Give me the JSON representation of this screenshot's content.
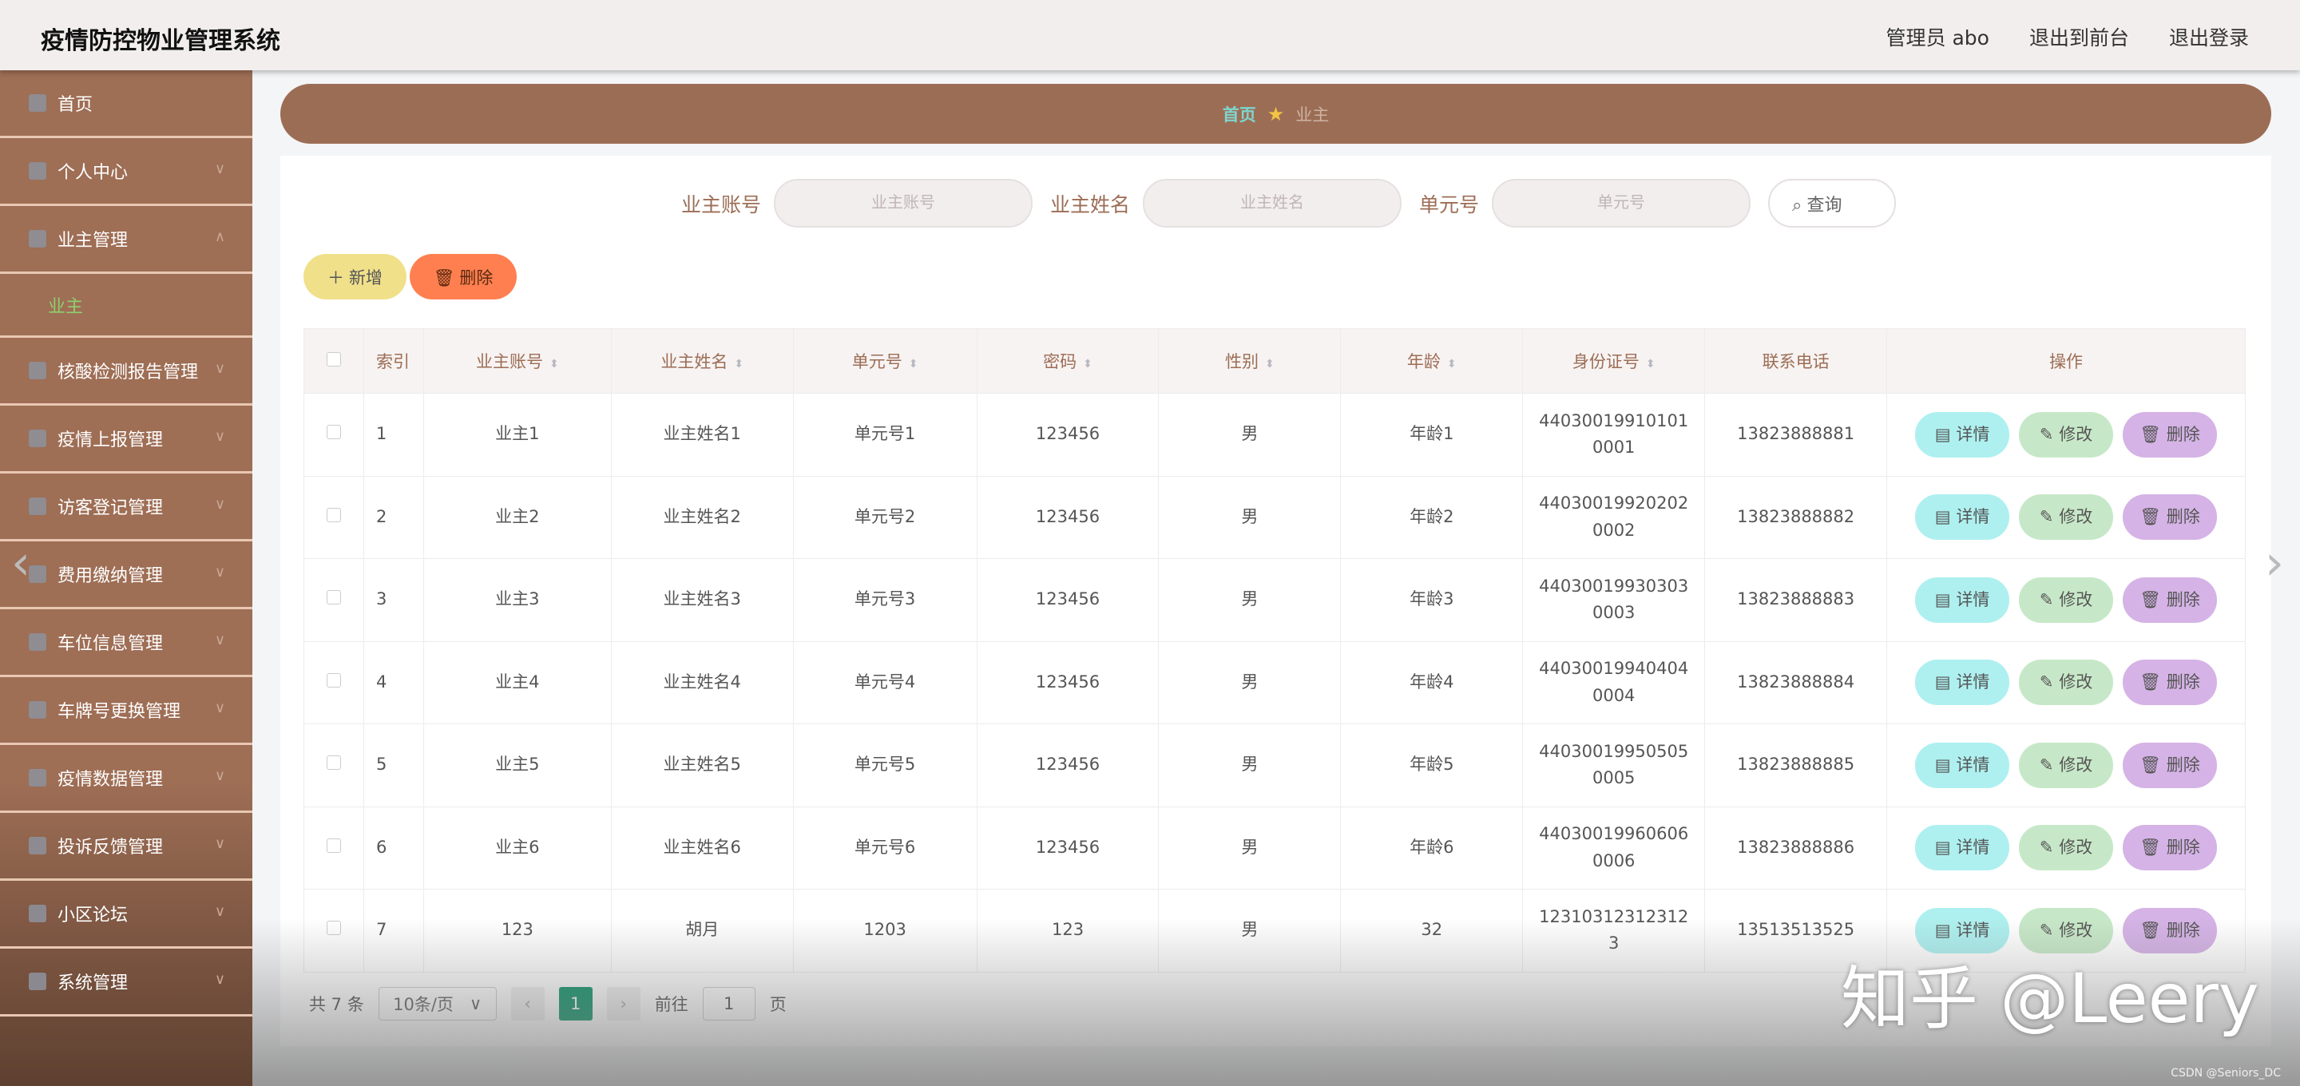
{
  "header": {
    "title": "疫情防控物业管理系统",
    "user": "管理员 abo",
    "to_front": "退出到前台",
    "logout": "退出登录"
  },
  "sidebar": {
    "items": [
      {
        "label": "首页",
        "icon": "home-icon"
      },
      {
        "label": "个人中心",
        "icon": "user-icon"
      },
      {
        "label": "业主管理",
        "icon": "list-icon",
        "expanded": true,
        "sub": "业主"
      },
      {
        "label": "核酸检测报告管理",
        "icon": "chat-icon"
      },
      {
        "label": "疫情上报管理",
        "icon": "grid-icon"
      },
      {
        "label": "访客登记管理",
        "icon": "compass-icon"
      },
      {
        "label": "费用缴纳管理",
        "icon": "money-icon"
      },
      {
        "label": "车位信息管理",
        "icon": "car-icon"
      },
      {
        "label": "车牌号更换管理",
        "icon": "clipboard-icon"
      },
      {
        "label": "疫情数据管理",
        "icon": "data-icon"
      },
      {
        "label": "投诉反馈管理",
        "icon": "user-icon"
      },
      {
        "label": "小区论坛",
        "icon": "list-icon"
      },
      {
        "label": "系统管理",
        "icon": "monitor-icon"
      }
    ]
  },
  "breadcrumb": {
    "home": "首页",
    "current": "业主"
  },
  "search": {
    "f1_label": "业主账号",
    "f1_placeholder": "业主账号",
    "f2_label": "业主姓名",
    "f2_placeholder": "业主姓名",
    "f3_label": "单元号",
    "f3_placeholder": "单元号",
    "query": "查询"
  },
  "toolbar": {
    "add": "新增",
    "delete": "删除"
  },
  "table": {
    "columns": [
      "索引",
      "业主账号",
      "业主姓名",
      "单元号",
      "密码",
      "性别",
      "年龄",
      "身份证号",
      "联系电话",
      "操作"
    ],
    "rows": [
      [
        "1",
        "业主1",
        "业主姓名1",
        "单元号1",
        "123456",
        "男",
        "年龄1",
        "440300199101010001",
        "13823888881"
      ],
      [
        "2",
        "业主2",
        "业主姓名2",
        "单元号2",
        "123456",
        "男",
        "年龄2",
        "440300199202020002",
        "13823888882"
      ],
      [
        "3",
        "业主3",
        "业主姓名3",
        "单元号3",
        "123456",
        "男",
        "年龄3",
        "440300199303030003",
        "13823888883"
      ],
      [
        "4",
        "业主4",
        "业主姓名4",
        "单元号4",
        "123456",
        "男",
        "年龄4",
        "440300199404040004",
        "13823888884"
      ],
      [
        "5",
        "业主5",
        "业主姓名5",
        "单元号5",
        "123456",
        "男",
        "年龄5",
        "440300199505050005",
        "13823888885"
      ],
      [
        "6",
        "业主6",
        "业主姓名6",
        "单元号6",
        "123456",
        "男",
        "年龄6",
        "440300199606060006",
        "13823888886"
      ],
      [
        "7",
        "123",
        "胡月",
        "1203",
        "123",
        "男",
        "32",
        "123103123123123",
        "13513513525"
      ]
    ],
    "ops": {
      "detail": "详情",
      "edit": "修改",
      "delete": "删除"
    }
  },
  "pager": {
    "total": "共 7 条",
    "size": "10条/页",
    "page": "1",
    "goto": "前往",
    "goto_value": "1",
    "page_unit": "页"
  },
  "watermark": "知乎 @Leery",
  "csdn": "CSDN @Seniors_DC",
  "colors": {
    "sidebar": "#9e6e55",
    "breadcrumb": "#9c6d55",
    "active_sub": "#8fd06f",
    "page_active": "#11956b"
  }
}
